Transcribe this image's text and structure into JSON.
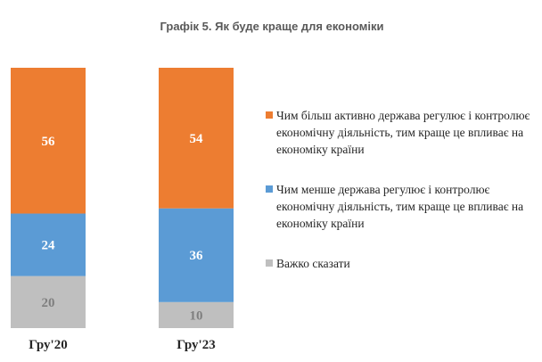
{
  "chart_data": {
    "type": "stacked-bar",
    "title": "Графік 5. Як буде краще для економіки",
    "categories": [
      "Гру'20",
      "Гру'23"
    ],
    "series": [
      {
        "name": "Чим більш активно держава регулює і контролює економічну діяльність, тим краще це впливає на економіку країни",
        "color": "#ed7d31",
        "values": [
          56,
          54
        ]
      },
      {
        "name": "Чим менше держава регулює і контролює економічну діяльність, тим краще це впливає на економіку країни",
        "color": "#5b9bd5",
        "values": [
          24,
          36
        ]
      },
      {
        "name": "Важко сказати",
        "color": "#bfbfbf",
        "values": [
          20,
          10
        ]
      }
    ]
  }
}
